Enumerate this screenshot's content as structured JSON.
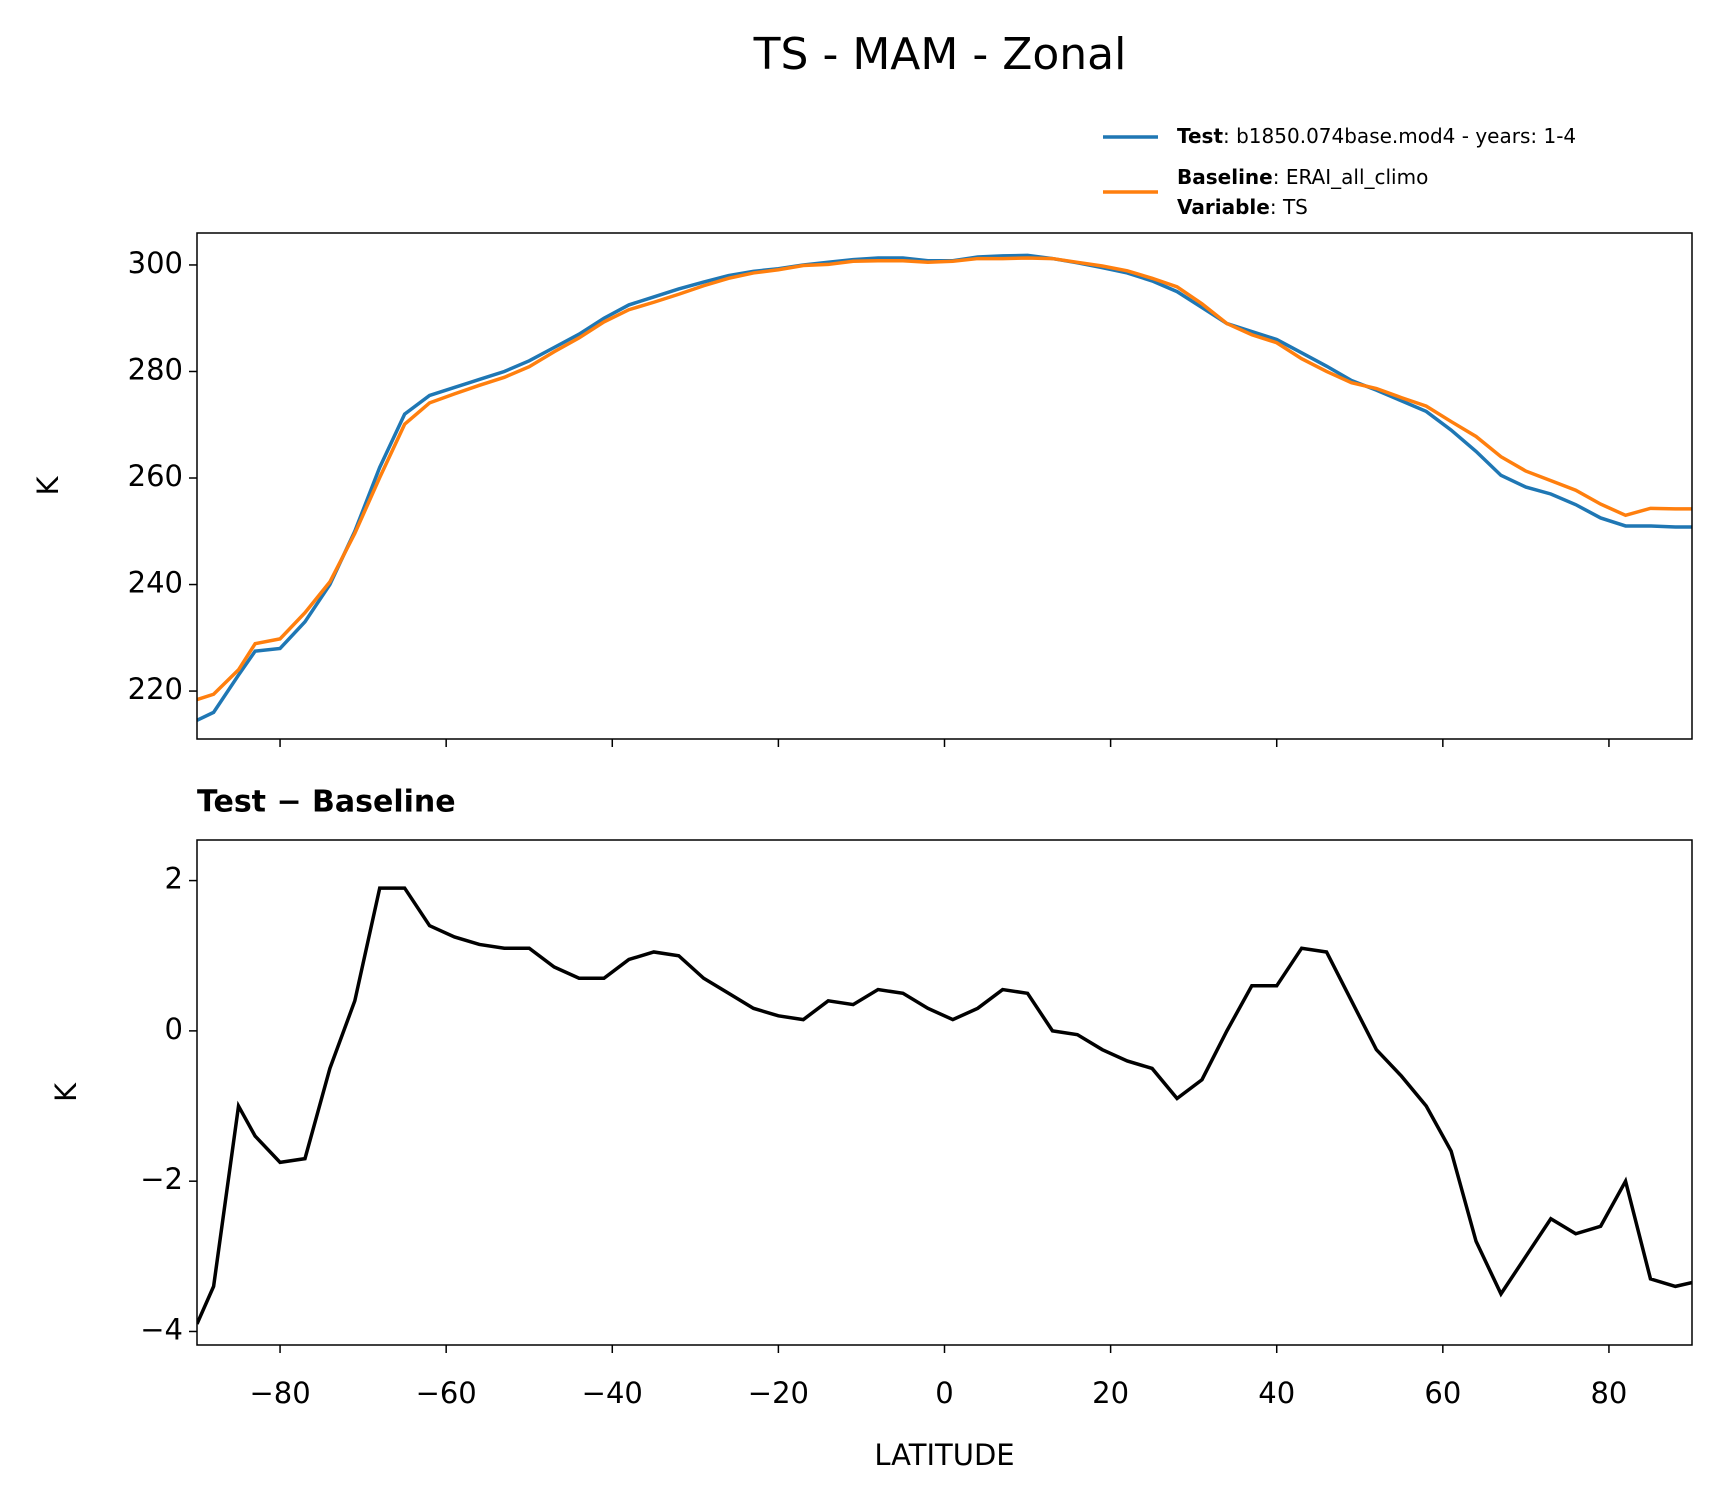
{
  "chart_data": [
    {
      "type": "line",
      "title": "TS - MAM - Zonal",
      "ylabel": "K",
      "x": [
        -90,
        -88,
        -85,
        -83,
        -80,
        -77,
        -74,
        -71,
        -68,
        -65,
        -62,
        -59,
        -56,
        -53,
        -50,
        -47,
        -44,
        -41,
        -38,
        -35,
        -32,
        -29,
        -26,
        -23,
        -20,
        -17,
        -14,
        -11,
        -8,
        -5,
        -2,
        1,
        4,
        7,
        10,
        13,
        16,
        19,
        22,
        25,
        28,
        31,
        34,
        37,
        40,
        43,
        46,
        49,
        52,
        55,
        58,
        61,
        64,
        67,
        70,
        73,
        76,
        79,
        82,
        85,
        88,
        90
      ],
      "series": [
        {
          "name": "Test",
          "detail": ": b1850.074base.mod4 - years: 1-4",
          "color": "#1f77b4",
          "values": [
            214.5,
            216,
            223,
            227.5,
            228,
            233,
            240,
            250,
            262,
            272,
            275.5,
            277,
            278.5,
            280,
            282,
            284.5,
            287,
            290,
            292.5,
            294,
            295.5,
            296.8,
            298,
            298.8,
            299.3,
            300,
            300.5,
            301,
            301.3,
            301.3,
            300.8,
            300.8,
            301.5,
            301.7,
            301.8,
            301.2,
            300.4,
            299.5,
            298.5,
            297,
            295,
            292,
            289,
            287.5,
            286,
            283.5,
            281,
            278.3,
            276.5,
            274.5,
            272.5,
            269,
            265,
            260.5,
            258.3,
            257,
            255,
            252.5,
            251,
            251,
            250.8,
            250.8
          ]
        },
        {
          "name": "Baseline",
          "detail": ": ERAI_all_climo",
          "color": "#ff7f0e",
          "values": [
            218.4,
            219.4,
            224,
            228.9,
            229.8,
            234.7,
            240.5,
            249.6,
            260.1,
            270.1,
            274.1,
            275.8,
            277.4,
            278.9,
            280.9,
            283.7,
            286.3,
            289.3,
            291.6,
            293,
            294.5,
            296.1,
            297.5,
            298.5,
            299.1,
            299.9,
            300.1,
            300.7,
            300.8,
            300.8,
            300.5,
            300.7,
            301.2,
            301.2,
            301.3,
            301.2,
            300.5,
            299.8,
            298.9,
            297.5,
            295.9,
            292.7,
            289,
            286.9,
            285.4,
            282.4,
            280,
            277.9,
            276.8,
            275.1,
            273.5,
            270.6,
            267.8,
            264,
            261.3,
            259.5,
            257.7,
            255.1,
            253,
            254.3,
            254.2,
            254.2
          ]
        }
      ],
      "legend_extra": {
        "name": "Variable",
        "detail": ": TS"
      },
      "ylim": [
        211,
        306
      ],
      "yticks": [
        220,
        240,
        260,
        280,
        300
      ]
    },
    {
      "type": "line",
      "title": "Test − Baseline",
      "ylabel": "K",
      "xlabel": "LATITUDE",
      "x": [
        -90,
        -88,
        -85,
        -83,
        -80,
        -77,
        -74,
        -71,
        -68,
        -65,
        -62,
        -59,
        -56,
        -53,
        -50,
        -47,
        -44,
        -41,
        -38,
        -35,
        -32,
        -29,
        -26,
        -23,
        -20,
        -17,
        -14,
        -11,
        -8,
        -5,
        -2,
        1,
        4,
        7,
        10,
        13,
        16,
        19,
        22,
        25,
        28,
        31,
        34,
        37,
        40,
        43,
        46,
        49,
        52,
        55,
        58,
        61,
        64,
        67,
        70,
        73,
        76,
        79,
        82,
        85,
        88,
        90
      ],
      "series": [
        {
          "color": "#000000",
          "values": [
            -3.9,
            -3.4,
            -1.0,
            -1.4,
            -1.75,
            -1.7,
            -0.5,
            0.4,
            1.9,
            1.9,
            1.4,
            1.25,
            1.15,
            1.1,
            1.1,
            0.85,
            0.7,
            0.7,
            0.95,
            1.05,
            1.0,
            0.7,
            0.5,
            0.3,
            0.2,
            0.15,
            0.4,
            0.35,
            0.55,
            0.5,
            0.3,
            0.15,
            0.3,
            0.55,
            0.5,
            0.0,
            -0.05,
            -0.25,
            -0.4,
            -0.5,
            -0.9,
            -0.65,
            0.0,
            0.6,
            0.6,
            1.1,
            1.05,
            0.4,
            -0.25,
            -0.6,
            -1.0,
            -1.6,
            -2.8,
            -3.5,
            -3.0,
            -2.5,
            -2.7,
            -2.6,
            -2.0,
            -3.3,
            -3.4,
            -3.35
          ]
        }
      ],
      "xlim": [
        -90,
        90
      ],
      "xticks": [
        {
          "value": -80,
          "label": "−80"
        },
        {
          "value": -60,
          "label": "−60"
        },
        {
          "value": -40,
          "label": "−40"
        },
        {
          "value": -20,
          "label": "−20"
        },
        0,
        20,
        40,
        60,
        80
      ],
      "ylim": [
        -4.18,
        2.54
      ],
      "yticks": [
        {
          "value": -4,
          "label": "−4"
        },
        {
          "value": -2,
          "label": "−2"
        },
        0,
        2
      ]
    }
  ]
}
